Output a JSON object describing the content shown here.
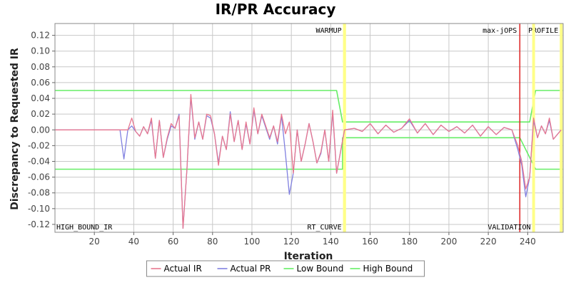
{
  "chart_data": {
    "type": "line",
    "title": "IR/PR Accuracy",
    "xlabel": "Iteration",
    "ylabel": "Discrepancy to Requested IR",
    "xlim": [
      0,
      258
    ],
    "ylim": [
      -0.13,
      0.135
    ],
    "xticks": [
      20,
      40,
      60,
      80,
      100,
      120,
      140,
      160,
      180,
      200,
      220,
      240
    ],
    "yticks": [
      -0.12,
      -0.1,
      -0.08,
      -0.06,
      -0.04,
      -0.02,
      0.0,
      0.02,
      0.04,
      0.06,
      0.08,
      0.1,
      0.12
    ],
    "ytick_labels": [
      "-0.12",
      "-0.10",
      "-0.08",
      "-0.06",
      "-0.04",
      "-0.02",
      "0.00",
      "0.02",
      "0.04",
      "0.06",
      "0.08",
      "0.10",
      "0.12"
    ],
    "grid": true,
    "legend_position": "bottom",
    "colors": {
      "actual_ir": "#e87890",
      "actual_pr": "#8080e0",
      "low_bound": "#66ee66",
      "high_bound": "#66ee66",
      "phase_marker": "#ffff88",
      "max_jops_marker": "#dd2222",
      "plot_border": "#888888",
      "grid": "#c8c8c8"
    },
    "markers": [
      {
        "name": "WARMUP",
        "x": 147,
        "color": "#ffff88",
        "label_position": "top-left"
      },
      {
        "name": "max-jOPS",
        "x": 236,
        "color": "#dd2222",
        "label_position": "top-left"
      },
      {
        "name": "PROFILE",
        "x": 257,
        "color": "#ffff88",
        "label_position": "top-left"
      },
      {
        "name": "RT_CURVE",
        "x": 147,
        "color": "#ffff88",
        "label_position": "bottom-left"
      },
      {
        "name": "VALIDATION",
        "x": 243,
        "color": "#ffff88",
        "label_position": "bottom-left"
      }
    ],
    "corner_label": "HIGH_BOUND_IR",
    "series": [
      {
        "name": "Actual IR",
        "x": [
          0,
          33,
          35,
          37,
          39,
          41,
          43,
          45,
          47,
          49,
          51,
          53,
          55,
          57,
          59,
          61,
          63,
          65,
          67,
          69,
          71,
          73,
          75,
          77,
          79,
          81,
          83,
          85,
          87,
          89,
          91,
          93,
          95,
          97,
          99,
          101,
          103,
          105,
          107,
          109,
          111,
          113,
          115,
          117,
          119,
          121,
          123,
          125,
          127,
          129,
          131,
          133,
          135,
          137,
          139,
          141,
          143,
          147,
          152,
          156,
          160,
          164,
          168,
          172,
          176,
          180,
          184,
          188,
          192,
          196,
          200,
          204,
          208,
          212,
          216,
          220,
          224,
          228,
          232,
          235,
          237,
          239,
          241,
          243,
          245,
          247,
          249,
          251,
          253,
          257
        ],
        "y": [
          0,
          0,
          0,
          0,
          0.015,
          -0.002,
          -0.008,
          0.004,
          -0.005,
          0.015,
          -0.036,
          0.012,
          -0.035,
          -0.01,
          0.008,
          0.002,
          0.018,
          -0.125,
          -0.05,
          0.045,
          -0.01,
          0.01,
          -0.012,
          0.02,
          0.018,
          -0.005,
          -0.045,
          -0.008,
          -0.025,
          0.02,
          -0.015,
          0.012,
          -0.025,
          0.01,
          -0.018,
          0.028,
          -0.005,
          0.02,
          0.005,
          -0.01,
          0.005,
          -0.015,
          0.02,
          -0.005,
          0.01,
          -0.055,
          0,
          -0.04,
          -0.018,
          0.008,
          -0.015,
          -0.042,
          -0.028,
          0,
          -0.04,
          0.025,
          -0.055,
          0,
          0.002,
          -0.002,
          0.008,
          -0.005,
          0.006,
          -0.003,
          0.002,
          0.014,
          -0.004,
          0.008,
          -0.006,
          0.006,
          -0.002,
          0.004,
          -0.004,
          0.006,
          -0.008,
          0.004,
          -0.006,
          0.003,
          0,
          -0.02,
          -0.04,
          -0.075,
          -0.06,
          0.015,
          -0.01,
          0.005,
          -0.005,
          0.015,
          -0.012,
          0
        ]
      },
      {
        "name": "Actual PR",
        "x": [
          0,
          33,
          35,
          37,
          39,
          41,
          43,
          45,
          47,
          49,
          51,
          53,
          55,
          57,
          59,
          61,
          63,
          65,
          67,
          69,
          71,
          73,
          75,
          77,
          79,
          81,
          83,
          85,
          87,
          89,
          91,
          93,
          95,
          97,
          99,
          101,
          103,
          105,
          107,
          109,
          111,
          113,
          115,
          117,
          119,
          121,
          123,
          125,
          127,
          129,
          131,
          133,
          135,
          137,
          139,
          141,
          143,
          147,
          152,
          156,
          160,
          164,
          168,
          172,
          176,
          180,
          184,
          188,
          192,
          196,
          200,
          204,
          208,
          212,
          216,
          220,
          224,
          228,
          232,
          235,
          237,
          239,
          241,
          243,
          245,
          247,
          249,
          251,
          253,
          257
        ],
        "y": [
          0,
          0,
          -0.037,
          0,
          0.005,
          -0.002,
          -0.008,
          0.004,
          -0.005,
          0.012,
          -0.036,
          0.012,
          -0.035,
          -0.012,
          0.005,
          0.002,
          0.02,
          -0.125,
          -0.05,
          0.042,
          -0.012,
          0.01,
          -0.012,
          0.018,
          0.015,
          -0.005,
          -0.042,
          -0.008,
          -0.025,
          0.023,
          -0.015,
          0.012,
          -0.025,
          0.008,
          -0.018,
          0.025,
          -0.005,
          0.018,
          0.003,
          -0.012,
          0.005,
          -0.018,
          0.018,
          -0.03,
          -0.082,
          -0.055,
          0,
          -0.04,
          -0.018,
          0.008,
          -0.015,
          -0.042,
          -0.03,
          0,
          -0.04,
          0.022,
          -0.055,
          0,
          0.002,
          -0.002,
          0.008,
          -0.005,
          0.006,
          -0.003,
          0.002,
          0.012,
          -0.004,
          0.008,
          -0.006,
          0.006,
          -0.002,
          0.004,
          -0.004,
          0.006,
          -0.008,
          0.004,
          -0.006,
          0.003,
          0,
          -0.025,
          -0.045,
          -0.085,
          -0.06,
          0.012,
          -0.01,
          0.005,
          -0.005,
          0.012,
          -0.012,
          0
        ]
      },
      {
        "name": "Low Bound",
        "x": [
          0,
          146,
          146,
          236,
          236,
          244,
          244,
          258
        ],
        "y": [
          -0.05,
          -0.05,
          -0.01,
          -0.01,
          -0.01,
          -0.05,
          -0.05,
          -0.05
        ]
      },
      {
        "name": "High Bound",
        "x": [
          0,
          143,
          146,
          236,
          241,
          244,
          258
        ],
        "y": [
          0.05,
          0.05,
          0.01,
          0.01,
          0.01,
          0.05,
          0.05
        ]
      }
    ]
  }
}
